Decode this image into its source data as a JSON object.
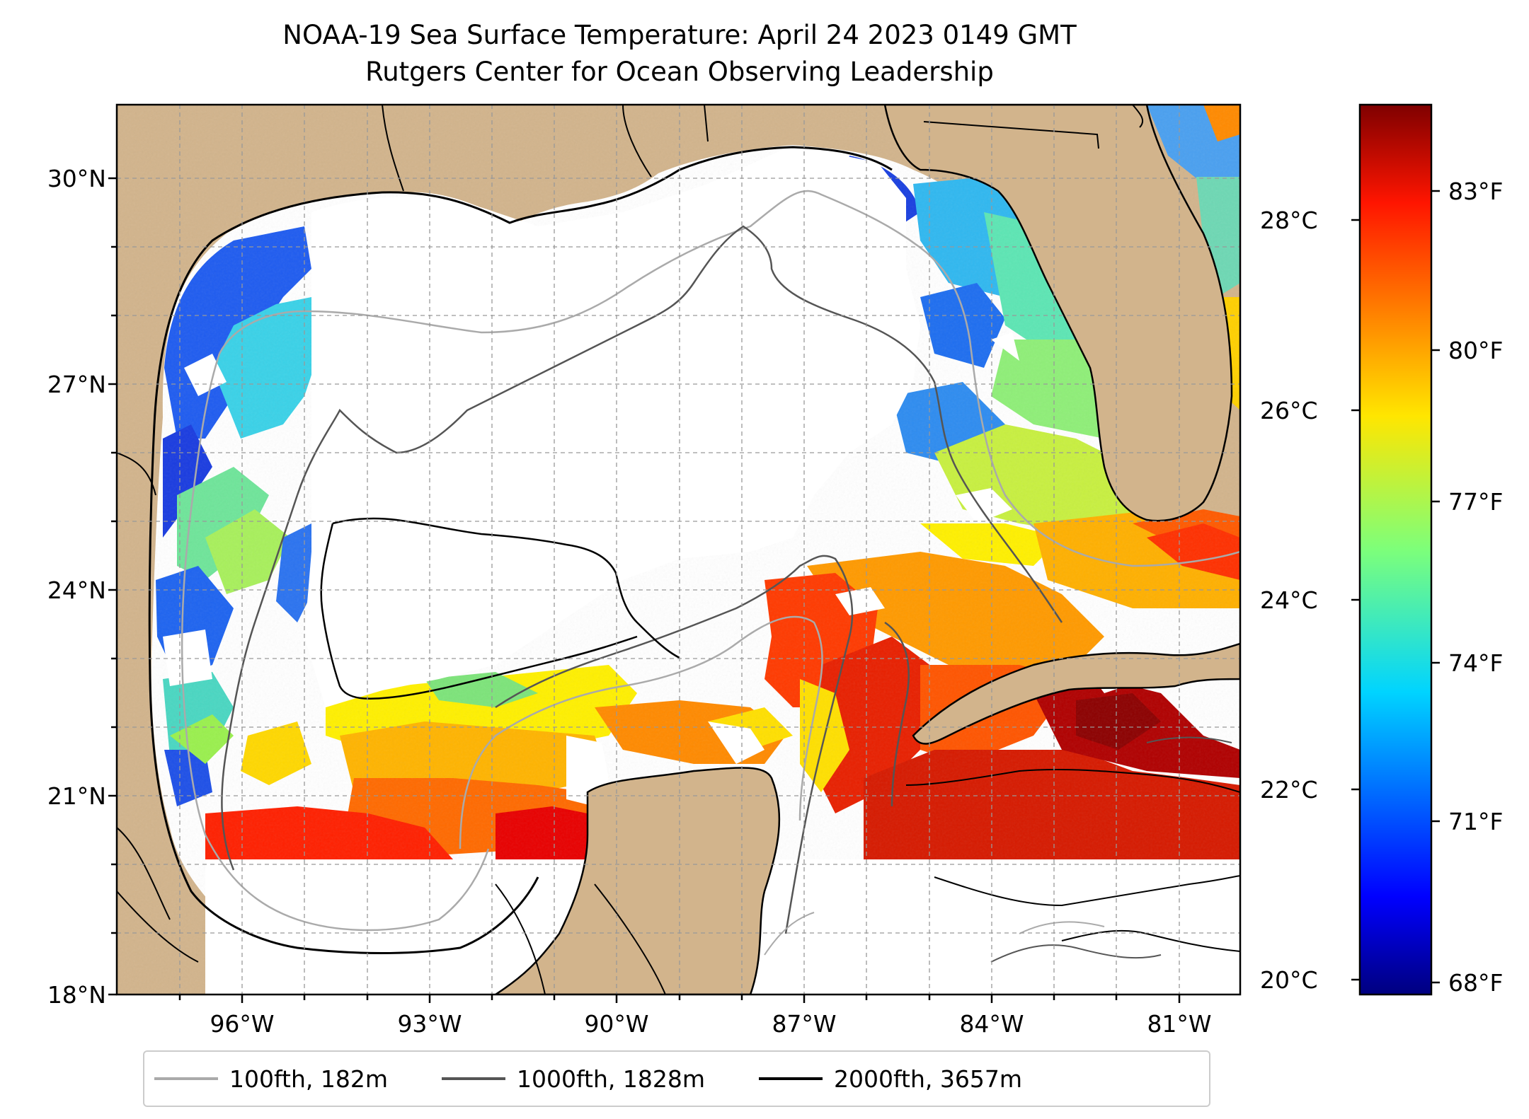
{
  "title_line1": "NOAA-19 Sea Surface Temperature: April 24 2023 0149 GMT",
  "title_line2": "Rutgers Center for Ocean Observing Leadership",
  "map": {
    "region": "Gulf of Mexico",
    "lon_range": [
      -98,
      -80
    ],
    "lat_range": [
      18,
      31
    ],
    "lat_ticks": [
      "30°N",
      "27°N",
      "24°N",
      "21°N",
      "18°N"
    ],
    "lon_ticks": [
      "96°W",
      "93°W",
      "90°W",
      "87°W",
      "84°W",
      "81°W"
    ],
    "land_color": "#d2b48c",
    "cloud_color": "#ffffff",
    "gridlines": "dashed gray"
  },
  "colorbar": {
    "colormap": "jet",
    "range_celsius": [
      19.8,
      29.3
    ],
    "celsius_ticks": [
      "28°C",
      "26°C",
      "24°C",
      "22°C",
      "20°C"
    ],
    "fahrenheit_ticks": [
      "83°F",
      "80°F",
      "77°F",
      "74°F",
      "71°F",
      "68°F"
    ]
  },
  "legend": {
    "items": [
      {
        "label": "100fth, 182m",
        "color": "#aaaaaa"
      },
      {
        "label": "1000fth, 1828m",
        "color": "#555555"
      },
      {
        "label": "2000fth, 3657m",
        "color": "#000000"
      }
    ]
  }
}
